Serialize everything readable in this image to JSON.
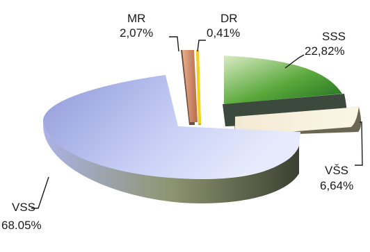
{
  "chart_data": {
    "type": "pie",
    "style": "3d-exploded",
    "legend": "none",
    "slices": [
      {
        "label": "SSS",
        "value_text": "22,82%",
        "value": 22.82,
        "color": "#5aa83c"
      },
      {
        "label": "VŠS",
        "value_text": "6,64%",
        "value": 6.64,
        "color": "#f4ead0"
      },
      {
        "label": "VSS",
        "value_text": "68.05%",
        "value": 68.05,
        "color": "#b9c2ef"
      },
      {
        "label": "MR",
        "value_text": "2,07%",
        "value": 2.07,
        "color": "#d9906a"
      },
      {
        "label": "DR",
        "value_text": "0,41%",
        "value": 0.41,
        "color": "#f3d21c"
      }
    ]
  }
}
